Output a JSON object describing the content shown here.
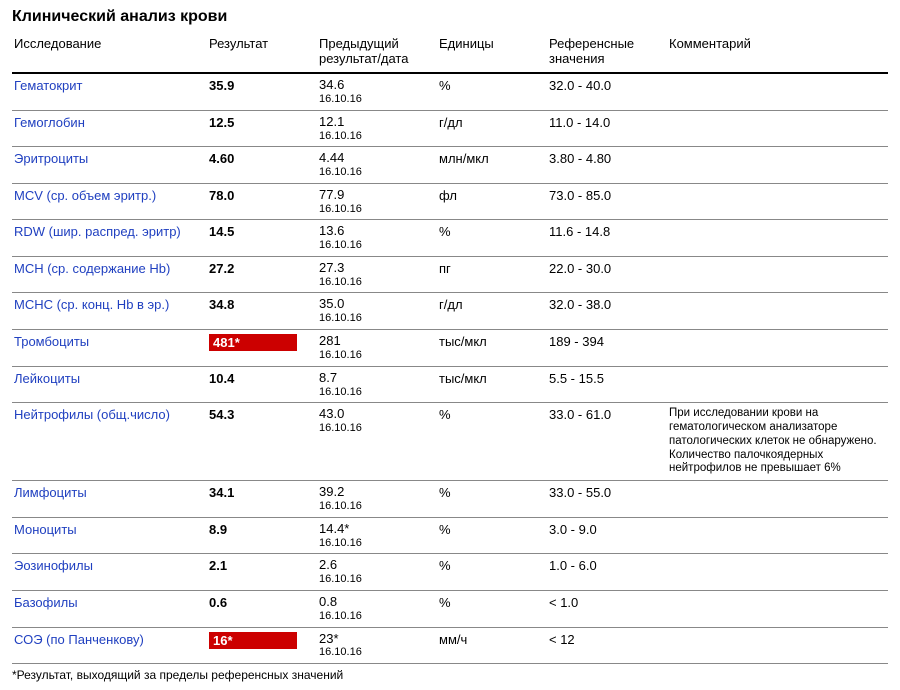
{
  "title": "Клинический анализ крови",
  "columns": {
    "name": "Исследование",
    "result": "Результат",
    "previous": "Предыдущий результат/дата",
    "units": "Единицы",
    "reference": "Референсные значения",
    "comment": "Комментарий"
  },
  "prev_date": "16.10.16",
  "footnote": "*Результат, выходящий за пределы референсных значений",
  "colors": {
    "link": "#2040c0",
    "flag_bg": "#cc0000",
    "flag_text": "#ffffff",
    "border_heavy": "#000000",
    "border_light": "#888888"
  },
  "rows": [
    {
      "name": "Гематокрит",
      "result": "35.9",
      "flag": false,
      "prev": "34.6",
      "units": "%",
      "ref": "32.0 - 40.0",
      "comment": ""
    },
    {
      "name": "Гемоглобин",
      "result": "12.5",
      "flag": false,
      "prev": "12.1",
      "units": "г/дл",
      "ref": "11.0 - 14.0",
      "comment": ""
    },
    {
      "name": "Эритроциты",
      "result": "4.60",
      "flag": false,
      "prev": "4.44",
      "units": "млн/мкл",
      "ref": "3.80 - 4.80",
      "comment": ""
    },
    {
      "name": "MCV (ср. объем эритр.)",
      "result": "78.0",
      "flag": false,
      "prev": "77.9",
      "units": "фл",
      "ref": "73.0 - 85.0",
      "comment": ""
    },
    {
      "name": "RDW (шир. распред. эритр)",
      "result": "14.5",
      "flag": false,
      "prev": "13.6",
      "units": "%",
      "ref": "11.6 - 14.8",
      "comment": ""
    },
    {
      "name": "MCH (ср. содержание Hb)",
      "result": "27.2",
      "flag": false,
      "prev": "27.3",
      "units": "пг",
      "ref": "22.0 - 30.0",
      "comment": ""
    },
    {
      "name": "MCHC (ср. конц. Hb в эр.)",
      "result": "34.8",
      "flag": false,
      "prev": "35.0",
      "units": "г/дл",
      "ref": "32.0 - 38.0",
      "comment": ""
    },
    {
      "name": "Тромбоциты",
      "result": "481*",
      "flag": true,
      "prev": "281",
      "units": "тыс/мкл",
      "ref": "189 - 394",
      "comment": ""
    },
    {
      "name": "Лейкоциты",
      "result": "10.4",
      "flag": false,
      "prev": "8.7",
      "units": "тыс/мкл",
      "ref": "5.5 - 15.5",
      "comment": ""
    },
    {
      "name": "Нейтрофилы (общ.число)",
      "result": "54.3",
      "flag": false,
      "prev": "43.0",
      "units": "%",
      "ref": "33.0 - 61.0",
      "comment": "При исследовании крови на гематологическом анализаторе патологических клеток не обнаружено. Количество палочкоядерных нейтрофилов не превышает 6%"
    },
    {
      "name": "Лимфоциты",
      "result": "34.1",
      "flag": false,
      "prev": "39.2",
      "units": "%",
      "ref": "33.0 - 55.0",
      "comment": ""
    },
    {
      "name": "Моноциты",
      "result": "8.9",
      "flag": false,
      "prev": "14.4*",
      "units": "%",
      "ref": "3.0 - 9.0",
      "comment": ""
    },
    {
      "name": "Эозинофилы",
      "result": "2.1",
      "flag": false,
      "prev": "2.6",
      "units": "%",
      "ref": "1.0 - 6.0",
      "comment": ""
    },
    {
      "name": "Базофилы",
      "result": "0.6",
      "flag": false,
      "prev": "0.8",
      "units": "%",
      "ref": "< 1.0",
      "comment": ""
    },
    {
      "name": "СОЭ (по Панченкову)",
      "result": "16*",
      "flag": true,
      "prev": "23*",
      "units": "мм/ч",
      "ref": "< 12",
      "comment": ""
    }
  ]
}
